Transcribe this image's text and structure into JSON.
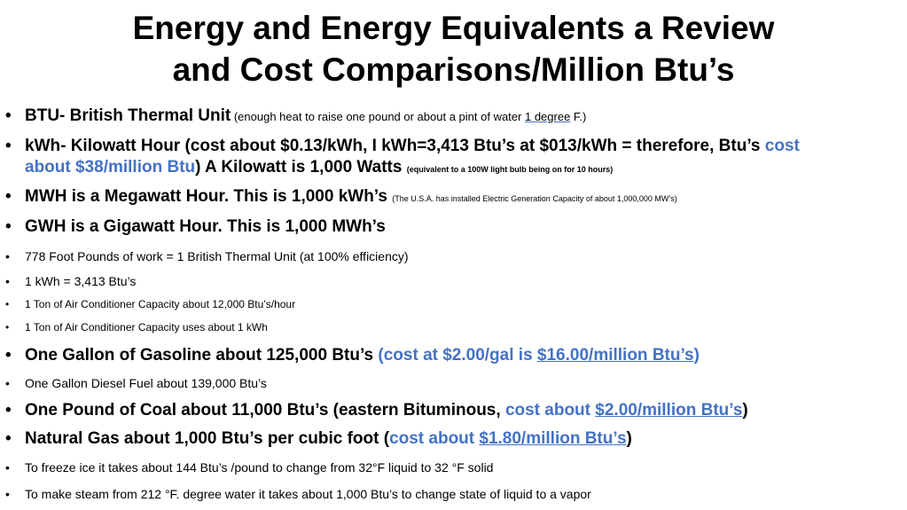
{
  "slide": {
    "title_line1": "Energy and Energy Equivalents a Review",
    "title_line2": "and Cost Comparisons/Million Btu’s",
    "bullet_char": "•",
    "items": [
      {
        "a": "BTU- British Thermal Unit",
        "b": " (enough heat to raise one pound or about a pint of water ",
        "c": "1 degree",
        "d": " F.)"
      },
      {
        "a": "kWh- Kilowatt Hour (cost about $0.13/kWh, I kWh=3,413 Btu’s at $013/kWh = therefore,  Btu’s ",
        "b": "cost",
        "c": "about $38/million Btu",
        "d": ") A Kilowatt is 1,000 Watts ",
        "e": "(equivalent to a 100W light bulb being on for 10 hours)"
      },
      {
        "a": "MWH is a Megawatt Hour. This is 1,000 kWh’s ",
        "b": "(The U.S.A. has installed Electric Generation Capacity of about 1,000,000 MW’s)"
      },
      {
        "a": "GWH is a Gigawatt Hour. This is 1,000 MWh’s"
      },
      {
        "a": "778 Foot Pounds of work = 1 British Thermal Unit (at 100% efficiency)"
      },
      {
        "a": "1 kWh  = 3,413 Btu’s"
      },
      {
        "a": "1 Ton of Air Conditioner Capacity about 12,000 Btu’s/hour"
      },
      {
        "a": "1 Ton of Air Conditioner Capacity uses about 1 kWh"
      },
      {
        "a": " One Gallon of Gasoline about 125,000 Btu’s  ",
        "b": "(cost at $2.00/gal is ",
        "c": "$16.00/million Btu’s",
        "d": ")"
      },
      {
        "a": "One Gallon Diesel Fuel about 139,000 Btu’s"
      },
      {
        "a": "One Pound of Coal about 11,000 Btu’s (eastern Bituminous, ",
        "b": "cost about ",
        "c": "$2.00/million Btu’s",
        "d": ")"
      },
      {
        "a": "Natural Gas about 1,000 Btu’s per cubic foot  (",
        "b": "cost about ",
        "c": "$1.80/million Btu’s",
        "d": ")"
      },
      {
        "a": "To freeze ice it takes about 144 Btu’s /pound to change from 32°F  liquid to 32 °F solid"
      },
      {
        "a": "To make steam from 212 °F. degree water it takes about 1,000 Btu’s to change state of liquid to a vapor"
      }
    ]
  }
}
